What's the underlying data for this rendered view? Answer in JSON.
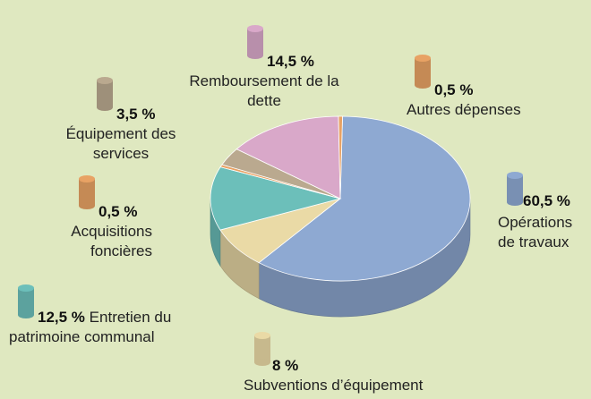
{
  "chart_data": {
    "type": "pie",
    "categories": [
      "Opérations de travaux",
      "Subventions d’équipement",
      "Entretien du patrimoine communal",
      "Acquisitions foncières",
      "Équipement des services",
      "Remboursement de la dette",
      "Autres dépenses"
    ],
    "values": [
      60.5,
      8,
      12.5,
      0.5,
      3.5,
      14.5,
      0.5
    ],
    "value_labels": [
      "60,5 %",
      "8 %",
      "12,5 %",
      "0,5 %",
      "3,5 %",
      "14,5 %",
      "0,5 %"
    ],
    "colors": [
      "#8ea9d2",
      "#eadaa6",
      "#6cbfba",
      "#e8a264",
      "#baa98f",
      "#d9a8c9",
      "#e8a264"
    ]
  }
}
